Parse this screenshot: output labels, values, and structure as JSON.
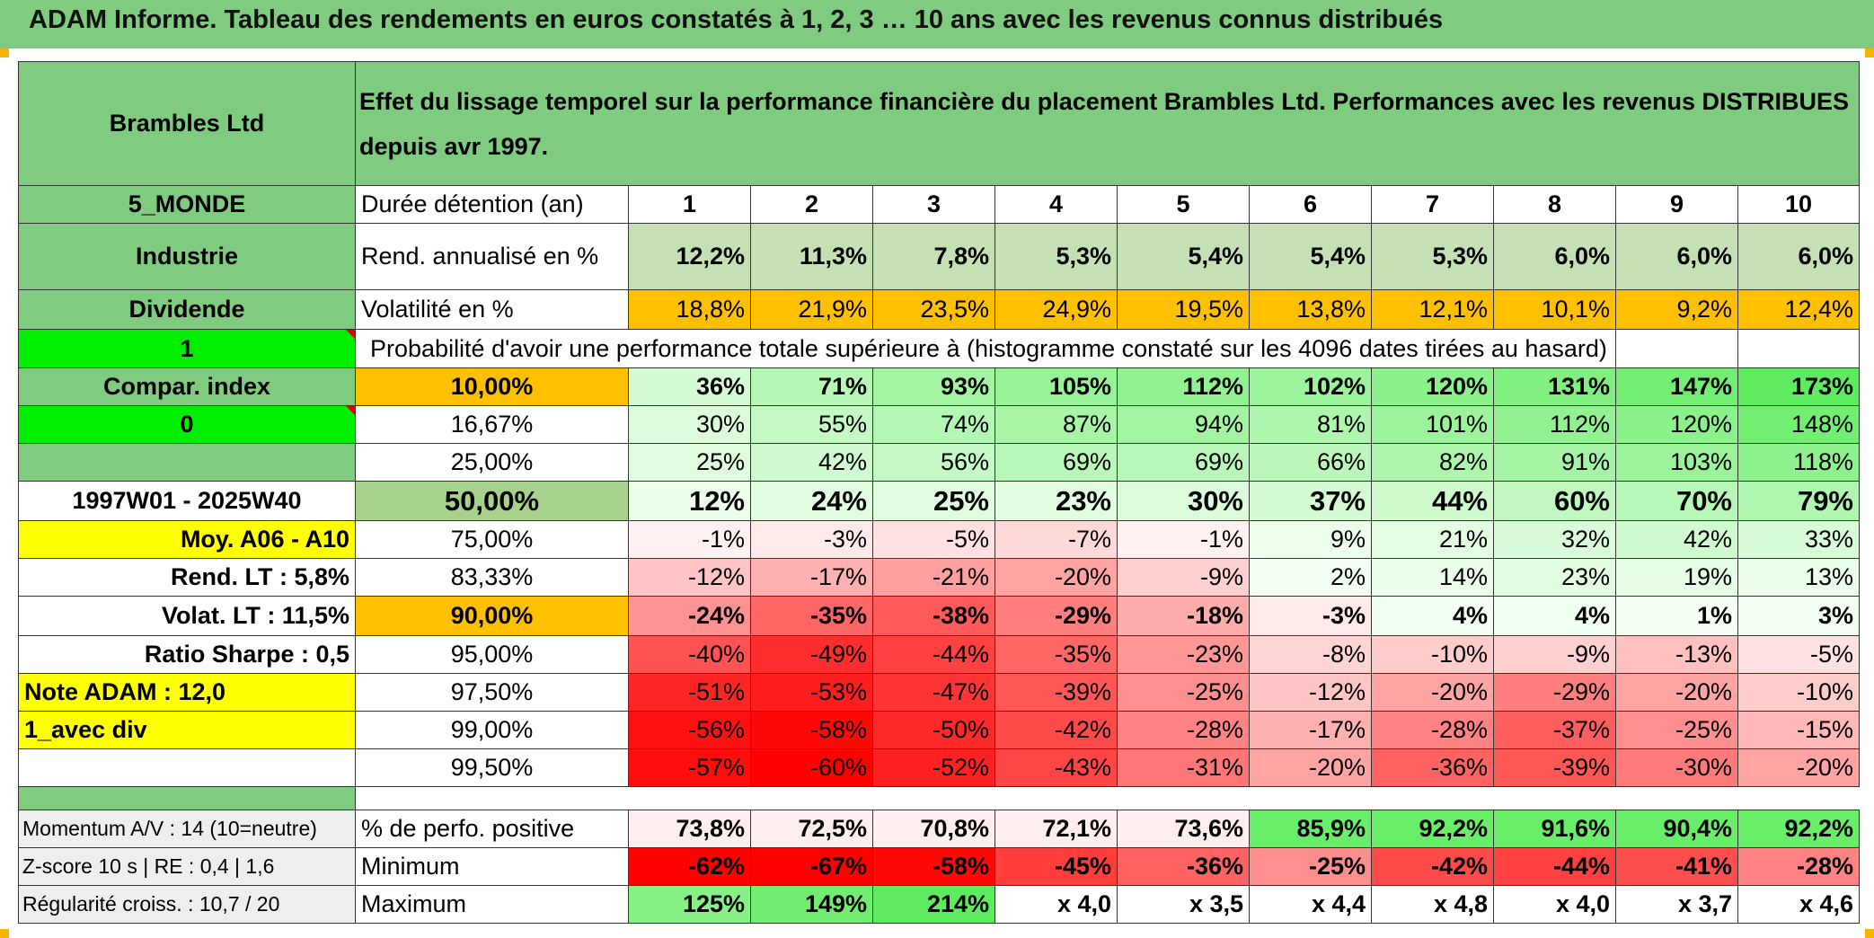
{
  "title": "ADAM Informe. Tableau des rendements en euros constatés à 1, 2, 3 … 10 ans avec les revenus connus distribués",
  "header": {
    "company": "Brambles Ltd",
    "description": "Effet du lissage temporel sur la performance financière du placement Brambles Ltd. Performances avec les revenus DISTRIBUES depuis avr 1997."
  },
  "left_panel": {
    "region": "5_MONDE",
    "sector": "Industrie",
    "type": "Dividende",
    "flag_1": "1",
    "compar_index": "Compar. index",
    "flag_0": "0",
    "blank": "",
    "period": "1997W01 - 2025W40",
    "moy": "Moy. A06 - A10",
    "rend_lt": "Rend. LT :   5,8%",
    "volat_lt": "Volat. LT :   11,5%",
    "sharpe": "Ratio Sharpe :    0,5",
    "note": "Note ADAM : 12,0",
    "avec_div": "1_avec div",
    "blank2": "",
    "blank3": ""
  },
  "columns": [
    "1",
    "2",
    "3",
    "4",
    "5",
    "6",
    "7",
    "8",
    "9",
    "10"
  ],
  "duree_label": "Durée détention (an)",
  "rend": {
    "label": "Rend. annualisé en %",
    "values": [
      "12,2%",
      "11,3%",
      "7,8%",
      "5,3%",
      "5,4%",
      "5,4%",
      "5,3%",
      "6,0%",
      "6,0%",
      "6,0%"
    ]
  },
  "volat": {
    "label": "Volatilité en %",
    "values": [
      "18,8%",
      "21,9%",
      "23,5%",
      "24,9%",
      "19,5%",
      "13,8%",
      "12,1%",
      "10,1%",
      "9,2%",
      "12,4%"
    ]
  },
  "probability_header": "Probabilité d'avoir une performance totale supérieure à (histogramme constaté sur les 4096 dates tirées au hasard)",
  "quantiles": [
    {
      "label": "10,00%",
      "values": [
        "36%",
        "71%",
        "93%",
        "105%",
        "112%",
        "102%",
        "120%",
        "131%",
        "147%",
        "173%"
      ]
    },
    {
      "label": "16,67%",
      "values": [
        "30%",
        "55%",
        "74%",
        "87%",
        "94%",
        "81%",
        "101%",
        "112%",
        "120%",
        "148%"
      ]
    },
    {
      "label": "25,00%",
      "values": [
        "25%",
        "42%",
        "56%",
        "69%",
        "69%",
        "66%",
        "82%",
        "91%",
        "103%",
        "118%"
      ]
    },
    {
      "label": "50,00%",
      "values": [
        "12%",
        "24%",
        "25%",
        "23%",
        "30%",
        "37%",
        "44%",
        "60%",
        "70%",
        "79%"
      ]
    },
    {
      "label": "75,00%",
      "values": [
        "-1%",
        "-3%",
        "-5%",
        "-7%",
        "-1%",
        "9%",
        "21%",
        "32%",
        "42%",
        "33%"
      ]
    },
    {
      "label": "83,33%",
      "values": [
        "-12%",
        "-17%",
        "-21%",
        "-20%",
        "-9%",
        "2%",
        "14%",
        "23%",
        "19%",
        "13%"
      ]
    },
    {
      "label": "90,00%",
      "values": [
        "-24%",
        "-35%",
        "-38%",
        "-29%",
        "-18%",
        "-3%",
        "4%",
        "4%",
        "1%",
        "3%"
      ]
    },
    {
      "label": "95,00%",
      "values": [
        "-40%",
        "-49%",
        "-44%",
        "-35%",
        "-23%",
        "-8%",
        "-10%",
        "-9%",
        "-13%",
        "-5%"
      ]
    },
    {
      "label": "97,50%",
      "values": [
        "-51%",
        "-53%",
        "-47%",
        "-39%",
        "-25%",
        "-12%",
        "-20%",
        "-29%",
        "-20%",
        "-10%"
      ]
    },
    {
      "label": "99,00%",
      "values": [
        "-56%",
        "-58%",
        "-50%",
        "-42%",
        "-28%",
        "-17%",
        "-28%",
        "-37%",
        "-25%",
        "-15%"
      ]
    },
    {
      "label": "99,50%",
      "values": [
        "-57%",
        "-60%",
        "-52%",
        "-43%",
        "-31%",
        "-20%",
        "-36%",
        "-39%",
        "-30%",
        "-20%"
      ]
    }
  ],
  "stats": [
    {
      "left": "Momentum A/V : 14 (10=neutre)",
      "label": "% de perfo. positive",
      "values": [
        "73,8%",
        "72,5%",
        "70,8%",
        "72,1%",
        "73,6%",
        "85,9%",
        "92,2%",
        "91,6%",
        "90,4%",
        "92,2%"
      ]
    },
    {
      "left": "Z-score 10 s | RE : 0,4 | 1,6",
      "label": "Minimum",
      "values": [
        "-62%",
        "-67%",
        "-58%",
        "-45%",
        "-36%",
        "-25%",
        "-42%",
        "-44%",
        "-41%",
        "-28%"
      ]
    },
    {
      "left": "Régularité croiss. : 10,7 / 20",
      "label": "Maximum",
      "values": [
        "125%",
        "149%",
        "214%",
        "x 4,0",
        "x 3,5",
        "x 4,4",
        "x 4,8",
        "x 4,0",
        "x 3,7",
        "x 4,6"
      ]
    }
  ],
  "colors": {
    "header_green": "#7fcb7f",
    "bright_green": "#00ee00",
    "yellow": "#ffff00",
    "orange": "#ffc000",
    "red_text": "#d40000",
    "positive_max": "#3ee03e",
    "negative_max": "#ff0000"
  }
}
